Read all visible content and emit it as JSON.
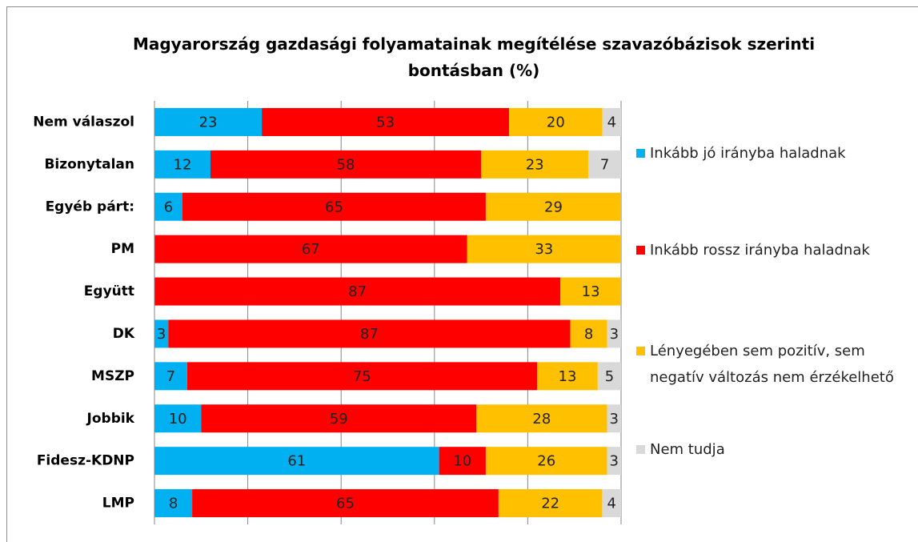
{
  "chart_data": {
    "type": "stacked_bar_100",
    "title": "Magyarország gazdasági folyamatainak megítélése szavazóbázisok szerinti bontásban (%)",
    "categories": [
      "Nem válaszol",
      "Bizonytalan",
      "Egyéb párt:",
      "PM",
      "Együtt",
      "DK",
      "MSZP",
      "Jobbik",
      "Fidesz-KDNP",
      "LMP"
    ],
    "series": [
      {
        "name": "Inkább jó irányba haladnak",
        "color": "#00b0f0",
        "values": [
          23,
          12,
          6,
          null,
          null,
          3,
          7,
          10,
          61,
          8
        ]
      },
      {
        "name": "Inkább rossz irányba haladnak",
        "color": "#ff0000",
        "values": [
          53,
          58,
          65,
          67,
          87,
          87,
          75,
          59,
          10,
          65
        ]
      },
      {
        "name": "Lényegében sem pozitív, sem negatív változás nem érzékelhető",
        "color": "#ffc000",
        "values": [
          20,
          23,
          29,
          33,
          13,
          8,
          13,
          28,
          26,
          22
        ]
      },
      {
        "name": "Nem tudja",
        "color": "#d9d9d9",
        "values": [
          4,
          7,
          null,
          null,
          null,
          3,
          5,
          3,
          3,
          4
        ]
      }
    ],
    "xlim": [
      0,
      100
    ],
    "xticks": [
      0,
      20,
      40,
      60,
      80,
      100
    ],
    "grid": true,
    "legend": "right"
  }
}
